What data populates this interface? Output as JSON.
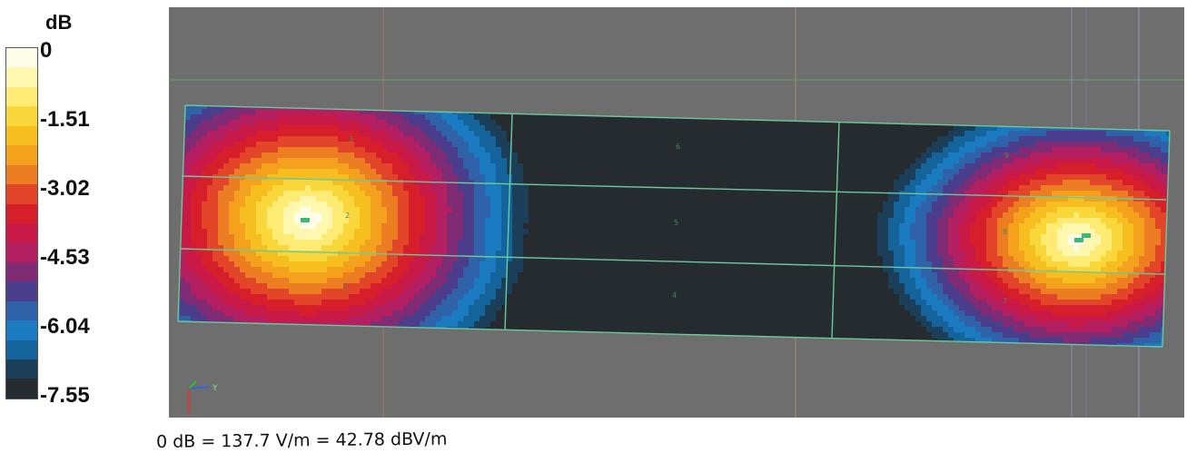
{
  "chart_data": {
    "type": "heatmap",
    "unit_label": "dB",
    "scale_min": -7.55,
    "scale_max": 0,
    "tick_labels": [
      "0",
      "-1.51",
      "-3.02",
      "-4.53",
      "-6.04",
      "-7.55"
    ],
    "tick_values": [
      0,
      -1.51,
      -3.02,
      -4.53,
      -6.04,
      -7.55
    ],
    "colormap": [
      "#fdfde8",
      "#fef7b0",
      "#fdeb74",
      "#f9d73b",
      "#f6be1e",
      "#f4a21e",
      "#ec7d23",
      "#e24527",
      "#d71f2c",
      "#c81947",
      "#b31f61",
      "#7f2c74",
      "#4a3e8c",
      "#2f62a8",
      "#1a7bc1",
      "#14639a",
      "#1b3e59",
      "#262b2f"
    ],
    "hotspots": [
      {
        "label": "max-left",
        "value_db": 0
      },
      {
        "label": "max-right",
        "value_db": 0
      }
    ],
    "minimum_region_value_db": -7.55,
    "grid_point_labels": [
      "3",
      "2",
      "1",
      "6",
      "5",
      "4",
      "9",
      "8",
      "7"
    ],
    "reference_note": "0 dB = 137.7 V/m = 42.78 dBV/m"
  },
  "axis_indicator": {
    "y_label": "Y"
  }
}
